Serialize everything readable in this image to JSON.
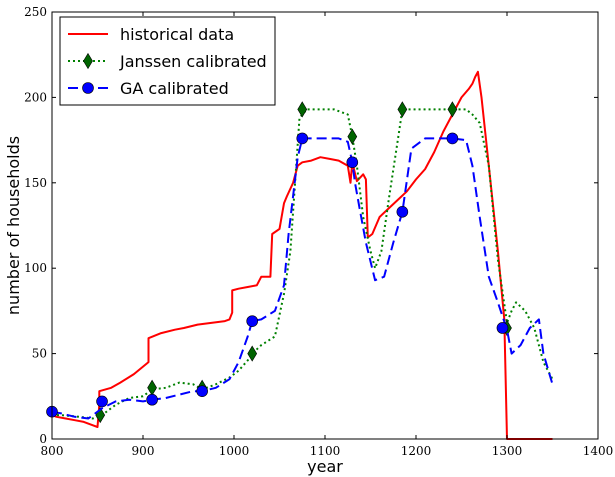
{
  "chart_data": {
    "type": "line",
    "title": "",
    "xlabel": "year",
    "ylabel": "number of households",
    "xlim": [
      800,
      1400
    ],
    "ylim": [
      0,
      250
    ],
    "xticks": [
      800,
      900,
      1000,
      1100,
      1200,
      1300,
      1400
    ],
    "yticks": [
      0,
      50,
      100,
      150,
      200,
      250
    ],
    "grid": false,
    "legend_position": "top-left",
    "series": [
      {
        "name": "historical data",
        "color": "#ff0000",
        "style": "solid",
        "marker": "none",
        "x": [
          800,
          805,
          815,
          825,
          835,
          845,
          850,
          852,
          852,
          865,
          875,
          890,
          906,
          906,
          920,
          935,
          945,
          960,
          975,
          990,
          995,
          998,
          998,
          1005,
          1015,
          1025,
          1030,
          1040,
          1042,
          1050,
          1055,
          1058,
          1065,
          1070,
          1075,
          1085,
          1095,
          1105,
          1115,
          1125,
          1128,
          1130,
          1135,
          1142,
          1145,
          1147,
          1152,
          1160,
          1170,
          1180,
          1190,
          1200,
          1210,
          1220,
          1230,
          1240,
          1250,
          1258,
          1262,
          1265,
          1268,
          1272,
          1280,
          1290,
          1297,
          1300,
          1302,
          1320,
          1350
        ],
        "y": [
          14,
          13,
          12,
          11,
          10,
          8,
          7,
          20,
          28,
          30,
          33,
          38,
          45,
          59,
          62,
          64,
          65,
          67,
          68,
          69,
          70,
          74,
          87,
          88,
          89,
          90,
          95,
          95,
          120,
          123,
          138,
          142,
          150,
          160,
          162,
          163,
          165,
          164,
          163,
          160,
          150,
          162,
          151,
          155,
          152,
          118,
          120,
          130,
          135,
          140,
          145,
          152,
          158,
          168,
          180,
          190,
          200,
          205,
          208,
          212,
          215,
          200,
          160,
          110,
          70,
          0,
          0,
          0,
          0
        ]
      },
      {
        "name": "Janssen calibrated",
        "color": "#008000",
        "style": "dotted",
        "marker": "diamond",
        "marker_color": "#006400",
        "x": [
          800,
          810,
          830,
          845,
          855,
          870,
          885,
          900,
          910,
          925,
          940,
          955,
          965,
          980,
          995,
          1005,
          1015,
          1020,
          1030,
          1045,
          1055,
          1062,
          1072,
          1080,
          1095,
          1110,
          1125,
          1130,
          1135,
          1142,
          1150,
          1155,
          1162,
          1170,
          1180,
          1185,
          1195,
          1210,
          1225,
          1240,
          1255,
          1262,
          1270,
          1280,
          1290,
          1300,
          1305,
          1310,
          1320,
          1330,
          1340,
          1350
        ],
        "y": [
          14,
          14,
          13,
          12,
          14,
          20,
          24,
          25,
          29,
          30,
          33,
          32,
          29,
          32,
          36,
          40,
          46,
          50,
          55,
          60,
          85,
          110,
          188,
          193,
          193,
          193,
          190,
          177,
          160,
          130,
          110,
          100,
          110,
          140,
          175,
          193,
          193,
          193,
          193,
          193,
          193,
          190,
          185,
          160,
          105,
          68,
          75,
          80,
          75,
          65,
          45,
          35
        ],
        "marker_x": [
          853,
          910,
          965,
          1020,
          1075,
          1130,
          1185,
          1240,
          1300
        ],
        "marker_y": [
          14,
          30,
          30,
          50,
          193,
          177,
          193,
          193,
          65
        ]
      },
      {
        "name": "GA calibrated",
        "color": "#0000ff",
        "style": "dashed",
        "marker": "circle",
        "marker_color": "#0000ff",
        "x": [
          800,
          810,
          825,
          840,
          855,
          870,
          885,
          900,
          910,
          925,
          940,
          955,
          965,
          980,
          995,
          1005,
          1015,
          1020,
          1030,
          1045,
          1055,
          1060,
          1070,
          1075,
          1085,
          1100,
          1115,
          1125,
          1130,
          1133,
          1138,
          1145,
          1155,
          1165,
          1175,
          1185,
          1195,
          1210,
          1225,
          1240,
          1255,
          1262,
          1270,
          1280,
          1290,
          1300,
          1305,
          1315,
          1325,
          1335,
          1340,
          1350
        ],
        "y": [
          16,
          15,
          13,
          12,
          18,
          22,
          23,
          22,
          23,
          24,
          26,
          28,
          28,
          30,
          35,
          45,
          60,
          69,
          70,
          75,
          90,
          120,
          165,
          176,
          176,
          176,
          176,
          174,
          162,
          150,
          135,
          115,
          93,
          95,
          115,
          133,
          170,
          176,
          176,
          176,
          175,
          160,
          130,
          95,
          80,
          64,
          50,
          55,
          65,
          70,
          50,
          32
        ],
        "marker_x": [
          800,
          855,
          910,
          965,
          1020,
          1075,
          1130,
          1185,
          1240,
          1295
        ],
        "marker_y": [
          16,
          22,
          23,
          28,
          69,
          176,
          162,
          133,
          176,
          65
        ]
      }
    ]
  }
}
